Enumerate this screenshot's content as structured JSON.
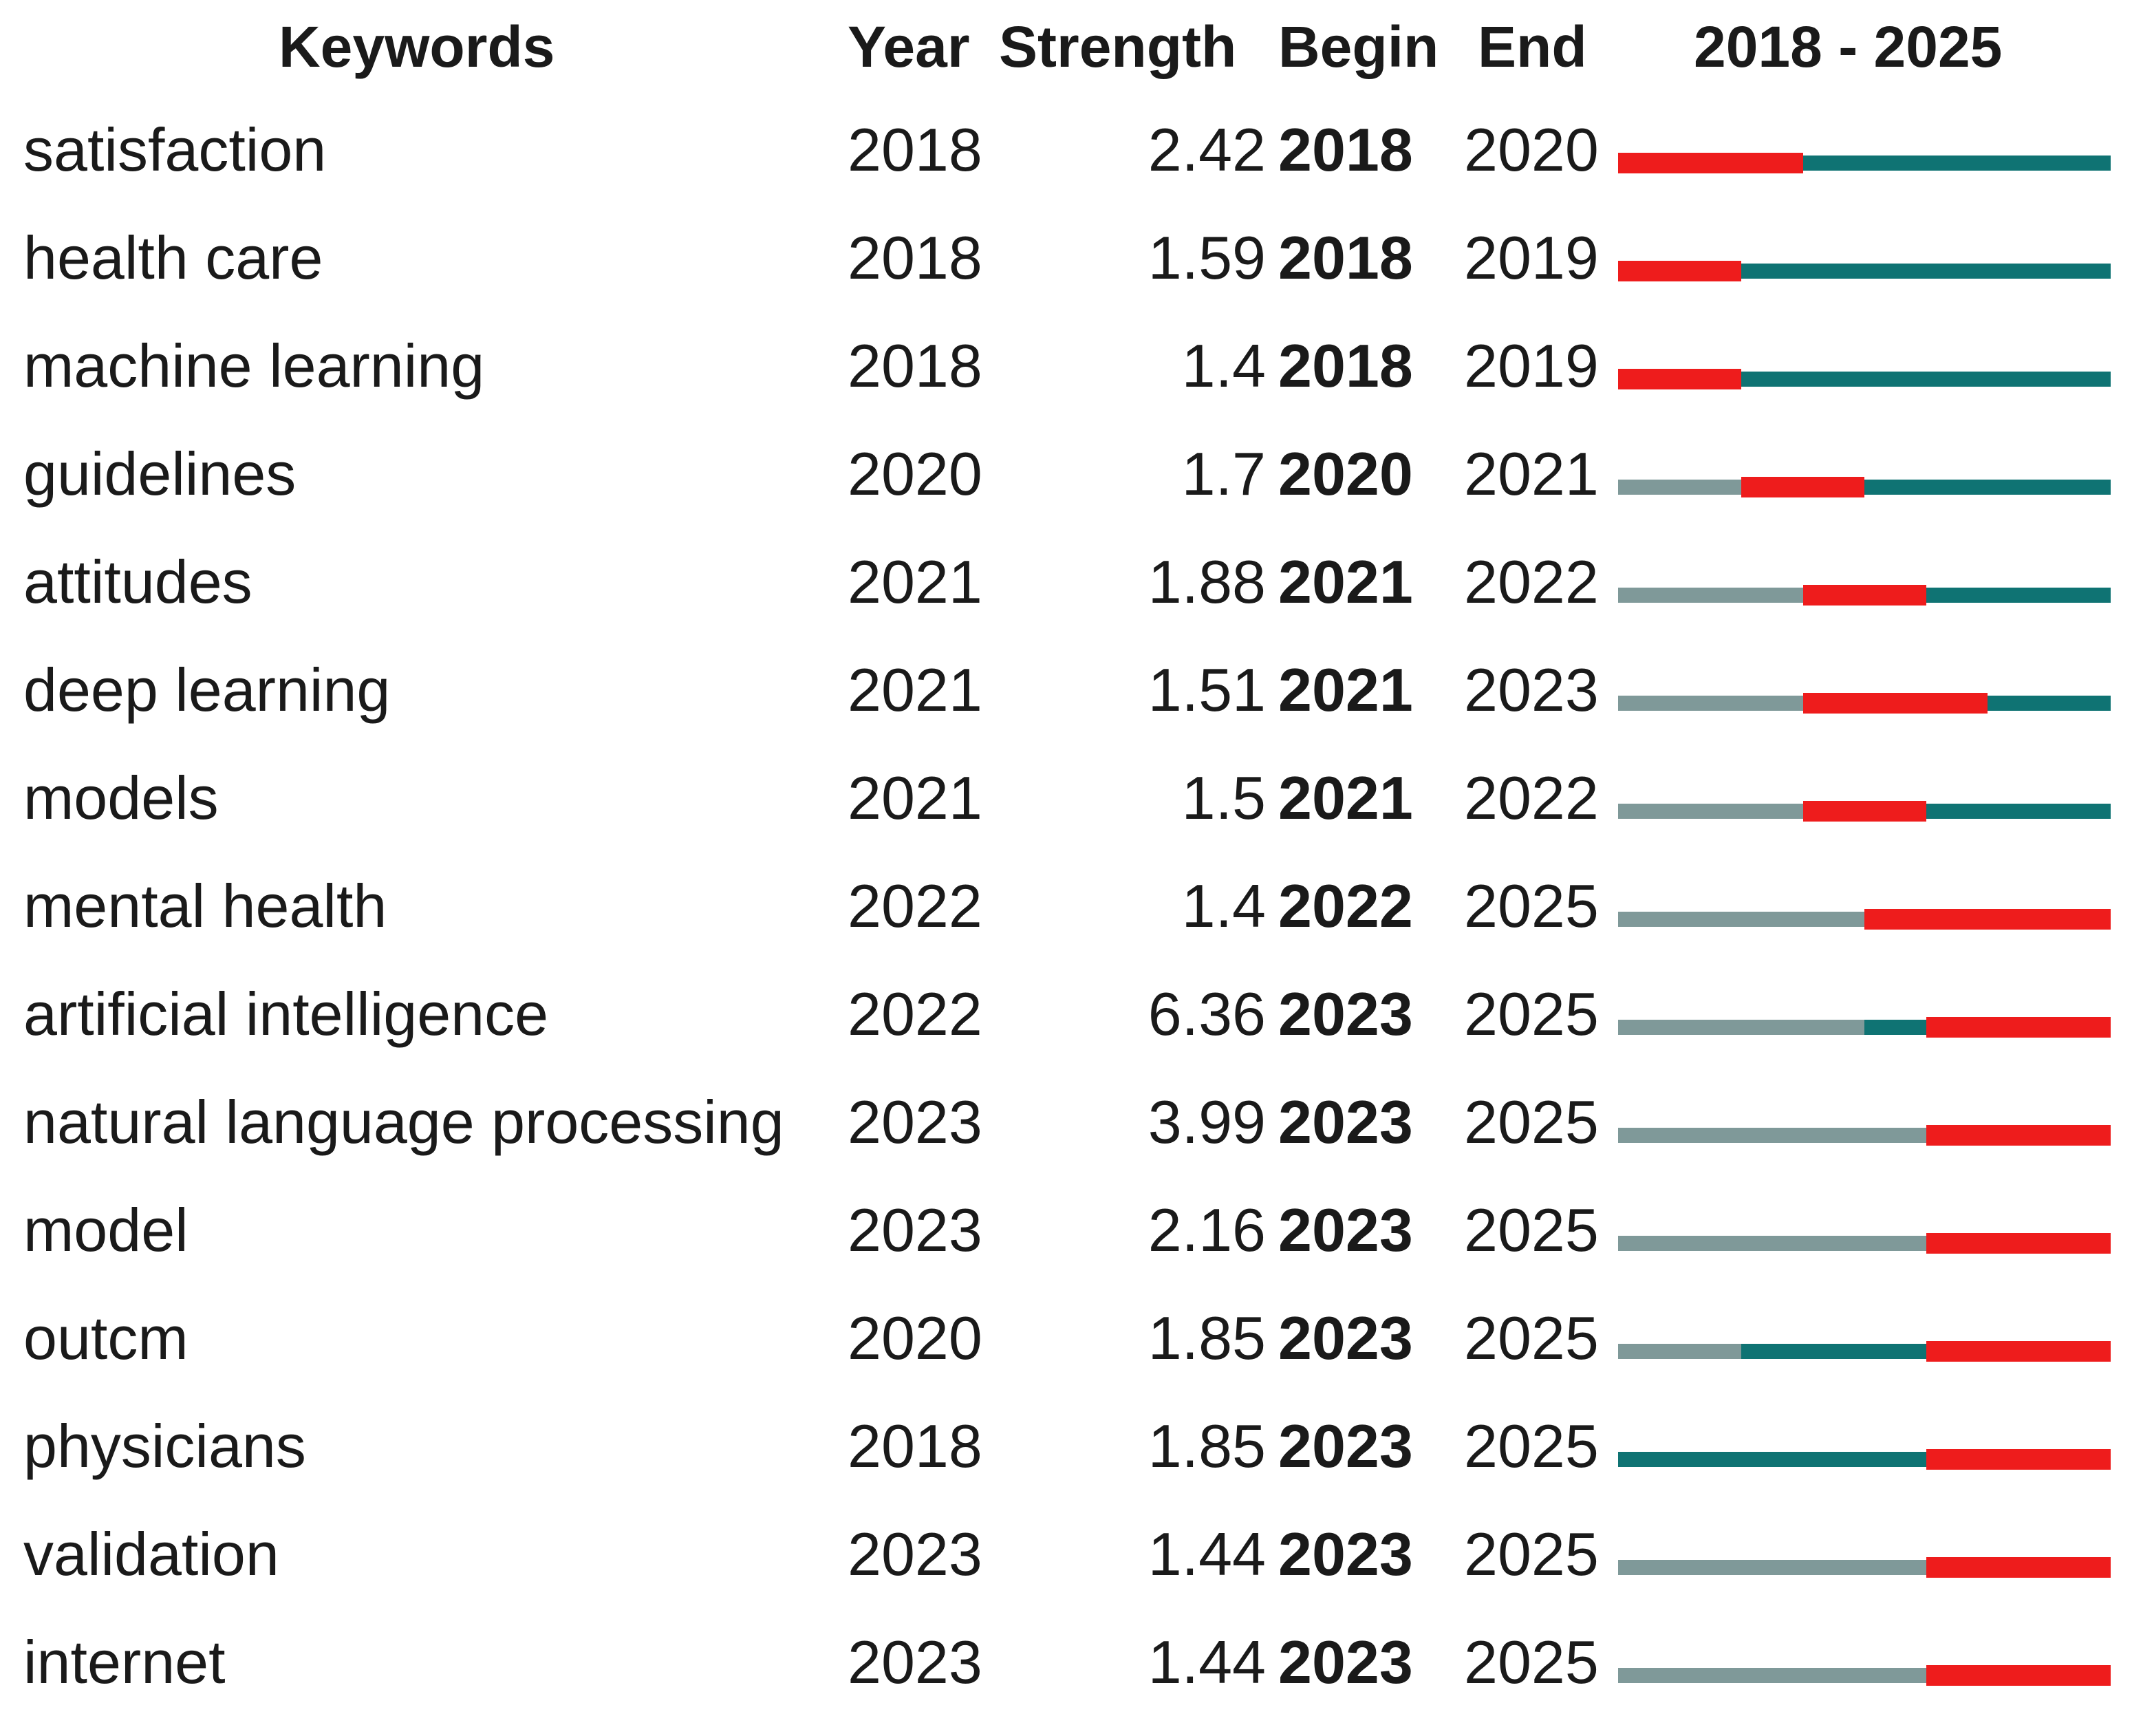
{
  "chart_data": {
    "type": "table",
    "columns": [
      "Keywords",
      "Year",
      "Strength",
      "Begin",
      "End",
      "2018 - 2025"
    ],
    "time_range": [
      2018,
      2025
    ],
    "colors": {
      "burst": "#ee1c1c",
      "active": "#0f7373",
      "inactive": "#7f9999"
    },
    "rows": [
      {
        "keyword": "satisfaction",
        "year": "2018",
        "strength": "2.42",
        "begin": "2018",
        "end": "2020",
        "first_year": 2018,
        "burst_start": 2018,
        "burst_end": 2020
      },
      {
        "keyword": "health care",
        "year": "2018",
        "strength": "1.59",
        "begin": "2018",
        "end": "2019",
        "first_year": 2018,
        "burst_start": 2018,
        "burst_end": 2019
      },
      {
        "keyword": "machine learning",
        "year": "2018",
        "strength": "1.4",
        "begin": "2018",
        "end": "2019",
        "first_year": 2018,
        "burst_start": 2018,
        "burst_end": 2019
      },
      {
        "keyword": "guidelines",
        "year": "2020",
        "strength": "1.7",
        "begin": "2020",
        "end": "2021",
        "first_year": 2020,
        "burst_start": 2020,
        "burst_end": 2021
      },
      {
        "keyword": "attitudes",
        "year": "2021",
        "strength": "1.88",
        "begin": "2021",
        "end": "2022",
        "first_year": 2021,
        "burst_start": 2021,
        "burst_end": 2022
      },
      {
        "keyword": "deep learning",
        "year": "2021",
        "strength": "1.51",
        "begin": "2021",
        "end": "2023",
        "first_year": 2021,
        "burst_start": 2021,
        "burst_end": 2023
      },
      {
        "keyword": "models",
        "year": "2021",
        "strength": "1.5",
        "begin": "2021",
        "end": "2022",
        "first_year": 2021,
        "burst_start": 2021,
        "burst_end": 2022
      },
      {
        "keyword": "mental health",
        "year": "2022",
        "strength": "1.4",
        "begin": "2022",
        "end": "2025",
        "first_year": 2022,
        "burst_start": 2022,
        "burst_end": 2025
      },
      {
        "keyword": "artificial intelligence",
        "year": "2022",
        "strength": "6.36",
        "begin": "2023",
        "end": "2025",
        "first_year": 2022,
        "burst_start": 2023,
        "burst_end": 2025
      },
      {
        "keyword": "natural language processing",
        "year": "2023",
        "strength": "3.99",
        "begin": "2023",
        "end": "2025",
        "first_year": 2023,
        "burst_start": 2023,
        "burst_end": 2025
      },
      {
        "keyword": "model",
        "year": "2023",
        "strength": "2.16",
        "begin": "2023",
        "end": "2025",
        "first_year": 2023,
        "burst_start": 2023,
        "burst_end": 2025
      },
      {
        "keyword": "outcm",
        "year": "2020",
        "strength": "1.85",
        "begin": "2023",
        "end": "2025",
        "first_year": 2020,
        "burst_start": 2023,
        "burst_end": 2025
      },
      {
        "keyword": "physicians",
        "year": "2018",
        "strength": "1.85",
        "begin": "2023",
        "end": "2025",
        "first_year": 2018,
        "burst_start": 2023,
        "burst_end": 2025
      },
      {
        "keyword": "validation",
        "year": "2023",
        "strength": "1.44",
        "begin": "2023",
        "end": "2025",
        "first_year": 2023,
        "burst_start": 2023,
        "burst_end": 2025
      },
      {
        "keyword": "internet",
        "year": "2023",
        "strength": "1.44",
        "begin": "2023",
        "end": "2025",
        "first_year": 2023,
        "burst_start": 2023,
        "burst_end": 2025
      }
    ]
  }
}
